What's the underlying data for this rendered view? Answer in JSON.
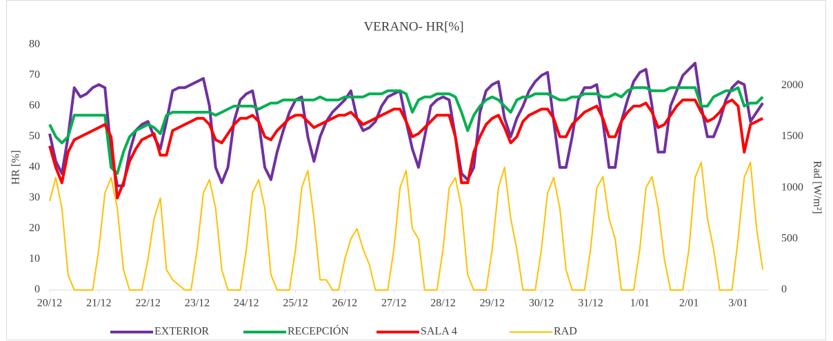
{
  "chart_data": {
    "type": "line",
    "title": "VERANO- HR[%]",
    "y_label": "HR [%]",
    "y2_label": "Rad [W/m²]",
    "x": [
      0,
      3,
      6,
      9,
      12,
      15,
      18,
      21,
      24,
      27,
      30,
      33,
      36,
      39,
      42,
      45,
      48,
      51,
      54,
      57,
      60,
      63,
      66,
      69,
      72,
      75,
      78,
      81,
      84,
      87,
      90,
      93,
      96,
      99,
      102,
      105,
      108,
      111,
      114,
      117,
      120,
      123,
      126,
      129,
      132,
      135,
      138,
      141,
      144,
      147,
      150,
      153,
      156,
      159,
      162,
      165,
      168,
      171,
      174,
      177,
      180,
      183,
      186,
      189,
      192,
      195,
      198,
      201,
      204,
      207,
      210,
      213,
      216,
      219,
      222,
      225,
      228,
      231,
      234,
      237,
      240,
      243,
      246,
      249,
      252,
      255,
      258,
      261,
      264,
      267,
      270,
      273,
      276,
      279,
      282,
      285,
      288,
      291,
      294,
      297,
      300,
      303,
      306,
      309,
      312,
      315,
      318,
      321,
      324,
      327,
      330,
      333,
      336,
      339,
      342,
      345,
      348
    ],
    "xlim": [
      0,
      351
    ],
    "xticks": [
      {
        "value": 0,
        "label": "20/12"
      },
      {
        "value": 24,
        "label": "21/12"
      },
      {
        "value": 48,
        "label": "22/12"
      },
      {
        "value": 72,
        "label": "23/12"
      },
      {
        "value": 96,
        "label": "24/12"
      },
      {
        "value": 120,
        "label": "25/12"
      },
      {
        "value": 144,
        "label": "26/12"
      },
      {
        "value": 168,
        "label": "27/12"
      },
      {
        "value": 192,
        "label": "28/12"
      },
      {
        "value": 216,
        "label": "29/12"
      },
      {
        "value": 240,
        "label": "30/12"
      },
      {
        "value": 264,
        "label": "31/12"
      },
      {
        "value": 288,
        "label": "1/01"
      },
      {
        "value": 312,
        "label": "2/01"
      },
      {
        "value": 336,
        "label": "3/01"
      }
    ],
    "ylim": [
      0,
      80
    ],
    "yticks": [
      0,
      10,
      20,
      30,
      40,
      50,
      60,
      70,
      80
    ],
    "y2lim": [
      0,
      2400
    ],
    "y2ticks": [
      0,
      500,
      1000,
      1500,
      2000
    ],
    "grid": false,
    "legend": "bottom",
    "series": [
      {
        "name": "EXTERIOR",
        "color": "#7030a0",
        "width": 4,
        "values": [
          51,
          42,
          38,
          50,
          66,
          63,
          64,
          66,
          67,
          66,
          45,
          34,
          34,
          45,
          52,
          54,
          55,
          50,
          46,
          55,
          65,
          66,
          66,
          67,
          68,
          69,
          60,
          40,
          35,
          40,
          55,
          62,
          64,
          65,
          55,
          40,
          36,
          45,
          52,
          58,
          62,
          63,
          50,
          42,
          50,
          55,
          58,
          60,
          62,
          65,
          56,
          52,
          53,
          55,
          60,
          63,
          64,
          65,
          55,
          46,
          40,
          50,
          60,
          62,
          63,
          62,
          50,
          38,
          36,
          40,
          58,
          65,
          67,
          68,
          56,
          50,
          56,
          60,
          65,
          68,
          70,
          71,
          55,
          40,
          40,
          50,
          62,
          66,
          66,
          67,
          55,
          40,
          40,
          55,
          62,
          68,
          71,
          72,
          60,
          45,
          45,
          60,
          65,
          70,
          72,
          74,
          60,
          50,
          50,
          55,
          62,
          66,
          68,
          67,
          55,
          58,
          61
        ]
      },
      {
        "name": "RECEPCIÓN",
        "color": "#00b050",
        "width": 4,
        "values": [
          54,
          50,
          48,
          50,
          57,
          57,
          57,
          57,
          57,
          57,
          40,
          38,
          45,
          50,
          52,
          53,
          54,
          53,
          51,
          57,
          58,
          58,
          58,
          58,
          58,
          58,
          58,
          57,
          58,
          59,
          60,
          60,
          60,
          60,
          59,
          60,
          61,
          61,
          62,
          62,
          62,
          62,
          62,
          62,
          63,
          62,
          62,
          62,
          63,
          63,
          63,
          63,
          64,
          64,
          64,
          65,
          65,
          65,
          64,
          58,
          62,
          63,
          63,
          64,
          64,
          64,
          63,
          58,
          52,
          57,
          60,
          62,
          63,
          62,
          60,
          58,
          62,
          63,
          63,
          64,
          64,
          64,
          63,
          62,
          62,
          63,
          63,
          64,
          64,
          64,
          63,
          63,
          64,
          63,
          65,
          66,
          66,
          66,
          65,
          65,
          65,
          66,
          66,
          66,
          66,
          66,
          60,
          60,
          63,
          64,
          65,
          65,
          66,
          60,
          61,
          61,
          63
        ]
      },
      {
        "name": "SALA 4",
        "color": "#ff0000",
        "width": 4,
        "values": [
          47,
          40,
          35,
          45,
          49,
          50,
          51,
          52,
          53,
          54,
          50,
          30,
          35,
          42,
          46,
          49,
          50,
          51,
          44,
          44,
          52,
          53,
          54,
          55,
          56,
          56,
          54,
          49,
          48,
          51,
          54,
          56,
          56,
          57,
          55,
          50,
          49,
          52,
          54,
          56,
          57,
          57,
          55,
          53,
          54,
          55,
          56,
          57,
          57,
          58,
          56,
          54,
          55,
          56,
          57,
          58,
          59,
          59,
          55,
          50,
          51,
          53,
          55,
          57,
          57,
          57,
          50,
          35,
          35,
          45,
          50,
          54,
          56,
          57,
          53,
          48,
          50,
          55,
          57,
          58,
          59,
          59,
          56,
          50,
          50,
          54,
          56,
          58,
          59,
          60,
          56,
          50,
          50,
          55,
          58,
          60,
          60,
          61,
          58,
          53,
          54,
          57,
          60,
          62,
          62,
          62,
          58,
          55,
          56,
          58,
          61,
          62,
          60,
          45,
          54,
          55,
          56
        ]
      },
      {
        "name": "RAD",
        "color": "#ffc000",
        "width": 2,
        "axis": "y2",
        "values": [
          870,
          1100,
          800,
          150,
          0,
          0,
          0,
          0,
          400,
          950,
          1100,
          800,
          200,
          0,
          0,
          0,
          300,
          700,
          900,
          200,
          100,
          50,
          0,
          0,
          400,
          950,
          1080,
          800,
          200,
          0,
          0,
          0,
          400,
          950,
          1080,
          800,
          150,
          0,
          0,
          0,
          400,
          1000,
          1170,
          700,
          100,
          100,
          0,
          0,
          300,
          500,
          600,
          400,
          250,
          0,
          0,
          0,
          400,
          1000,
          1170,
          600,
          500,
          0,
          0,
          0,
          400,
          1000,
          1100,
          800,
          150,
          0,
          0,
          0,
          400,
          1000,
          1200,
          700,
          400,
          0,
          0,
          0,
          400,
          950,
          1100,
          800,
          200,
          0,
          0,
          0,
          400,
          1000,
          1110,
          700,
          500,
          0,
          0,
          0,
          400,
          1000,
          1110,
          800,
          300,
          0,
          0,
          0,
          400,
          1100,
          1250,
          700,
          400,
          0,
          0,
          0,
          500,
          1100,
          1250,
          600,
          200
        ]
      }
    ]
  }
}
